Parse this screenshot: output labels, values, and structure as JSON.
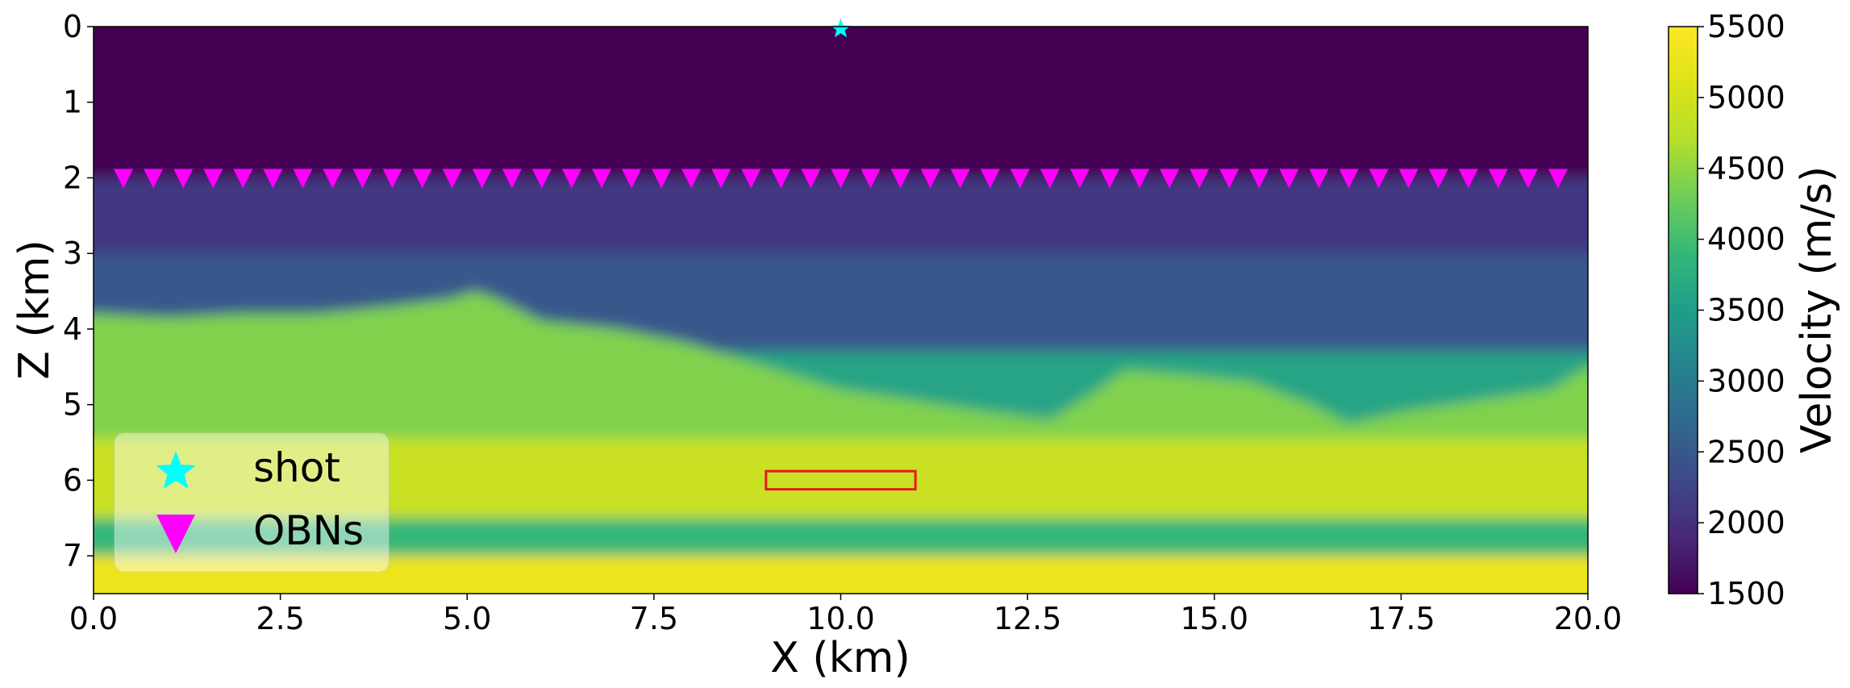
{
  "chart_data": {
    "type": "heatmap",
    "xlabel": "X (km)",
    "ylabel": "Z (km)",
    "xlim": [
      0,
      20
    ],
    "ylim": [
      7.5,
      0
    ],
    "xticks": [
      "0.0",
      "2.5",
      "5.0",
      "7.5",
      "10.0",
      "12.5",
      "15.0",
      "17.5",
      "20.0"
    ],
    "yticks": [
      "0",
      "1",
      "2",
      "3",
      "4",
      "5",
      "6",
      "7"
    ],
    "colorbar": {
      "label": "Velocity (m/s)",
      "range": [
        1500,
        5500
      ],
      "ticks": [
        "1500",
        "2000",
        "2500",
        "3000",
        "3500",
        "4000",
        "4500",
        "5000",
        "5500"
      ],
      "colormap": "viridis"
    },
    "velocity_model": {
      "water_velocity": 1500,
      "layers": [
        {
          "top_depth_km": 0.0,
          "velocity": 1500
        },
        {
          "top_depth_km": 2.0,
          "velocity": 2100
        },
        {
          "top_depth_km": 3.0,
          "velocity": 2500
        },
        {
          "top_depth_km": 4.3,
          "velocity": 3600
        },
        {
          "top_depth_km": 5.4,
          "velocity": 4900
        },
        {
          "top_depth_km": 6.5,
          "velocity": 3900
        },
        {
          "top_depth_km": 7.0,
          "velocity": 5300
        }
      ],
      "body_top_km": [
        [
          0,
          3.8
        ],
        [
          1.0,
          3.85
        ],
        [
          2.0,
          3.8
        ],
        [
          3.0,
          3.8
        ],
        [
          4.0,
          3.7
        ],
        [
          4.8,
          3.6
        ],
        [
          5.1,
          3.5
        ],
        [
          5.4,
          3.6
        ],
        [
          6.0,
          3.9
        ],
        [
          7.0,
          4.0
        ],
        [
          8.0,
          4.2
        ],
        [
          9.0,
          4.5
        ],
        [
          10.0,
          4.8
        ],
        [
          11.0,
          4.95
        ],
        [
          12.0,
          5.1
        ],
        [
          12.8,
          5.2
        ],
        [
          13.3,
          4.9
        ],
        [
          13.8,
          4.55
        ],
        [
          14.5,
          4.6
        ],
        [
          15.5,
          4.7
        ],
        [
          16.3,
          5.0
        ],
        [
          16.8,
          5.25
        ],
        [
          17.5,
          5.1
        ],
        [
          18.5,
          4.95
        ],
        [
          19.5,
          4.8
        ],
        [
          20.0,
          4.5
        ]
      ],
      "reflector_depth_km": 5.45
    },
    "series": [
      {
        "name": "shot",
        "marker": "star",
        "color": "#00ffff",
        "x": [
          10.0
        ],
        "y": [
          0.03
        ]
      },
      {
        "name": "OBNs",
        "marker": "triangle-down",
        "color": "#ff00ff",
        "x": [
          0.4,
          0.8,
          1.2,
          1.6,
          2.0,
          2.4,
          2.8,
          3.2,
          3.6,
          4.0,
          4.4,
          4.8,
          5.2,
          5.6,
          6.0,
          6.4,
          6.8,
          7.2,
          7.6,
          8.0,
          8.4,
          8.8,
          9.2,
          9.6,
          10.0,
          10.4,
          10.8,
          11.2,
          11.6,
          12.0,
          12.4,
          12.8,
          13.2,
          13.6,
          14.0,
          14.4,
          14.8,
          15.2,
          15.6,
          16.0,
          16.4,
          16.8,
          17.2,
          17.6,
          18.0,
          18.4,
          18.8,
          19.2,
          19.6
        ],
        "y": 2.0
      }
    ],
    "annotations": [
      {
        "type": "rectangle",
        "color": "#e41a1c",
        "x0": 9.0,
        "x1": 11.0,
        "y0": 5.88,
        "y1": 6.12
      }
    ],
    "legend": {
      "placement": "lower-left",
      "entries": [
        "shot",
        "OBNs"
      ]
    }
  }
}
